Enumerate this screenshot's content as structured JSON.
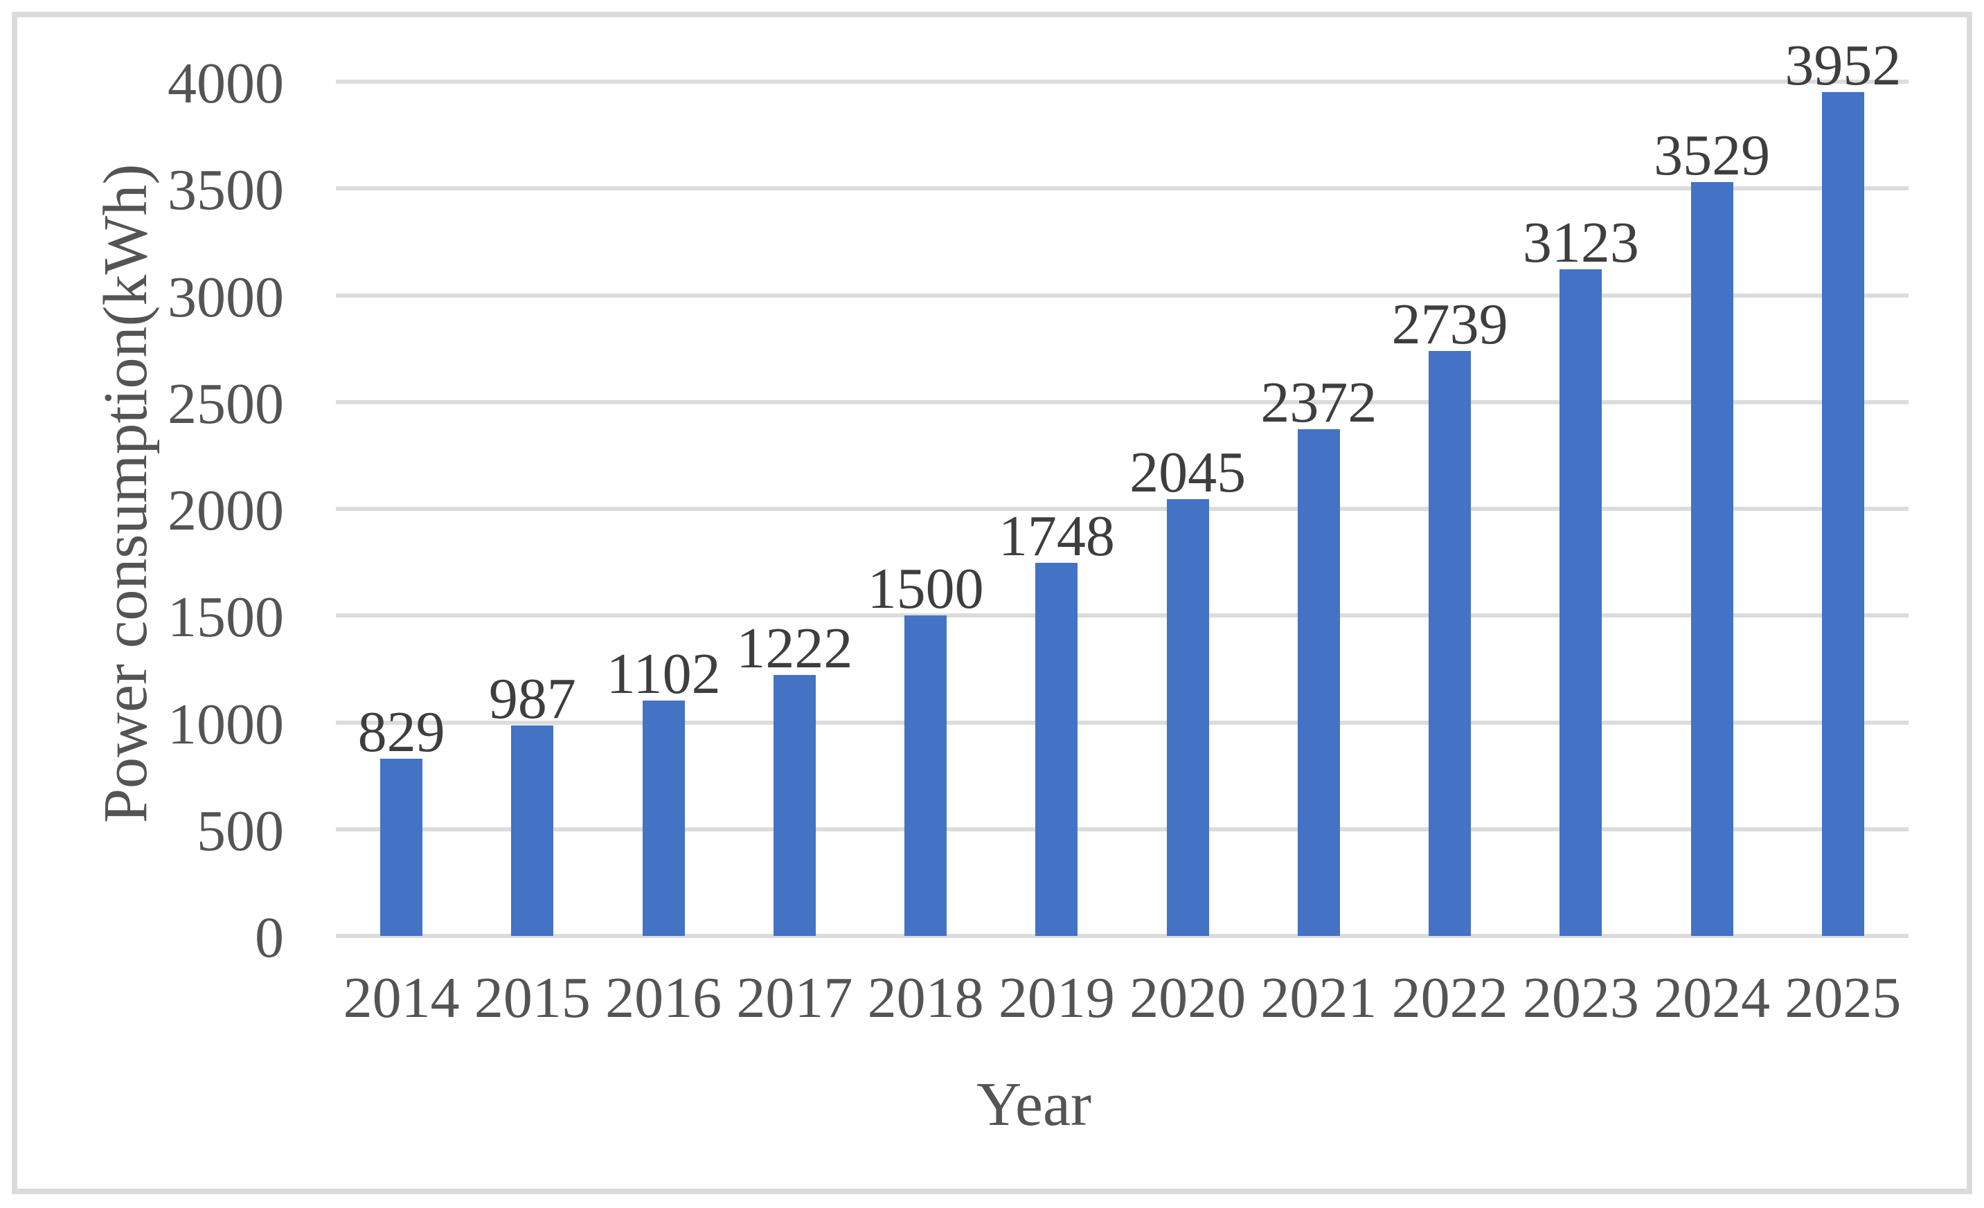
{
  "chart_data": {
    "type": "bar",
    "title": "",
    "categories": [
      "2014",
      "2015",
      "2016",
      "2017",
      "2018",
      "2019",
      "2020",
      "2021",
      "2022",
      "2023",
      "2024",
      "2025"
    ],
    "values": [
      829,
      987,
      1102,
      1222,
      1500,
      1748,
      2045,
      2372,
      2739,
      3123,
      3529,
      3952
    ],
    "xlabel": "Year",
    "ylabel": "Power consumption(kWh)",
    "ylim": [
      0,
      4000
    ],
    "yticks": [
      0,
      500,
      1000,
      1500,
      2000,
      2500,
      3000,
      3500,
      4000
    ],
    "grid": true,
    "legend": "none",
    "data_labels": "outside-end",
    "colors": {
      "bar": "#4472C4",
      "gridline": "#DCDCDC",
      "axis_line": "#DCDCDC",
      "tick_text": "#545454",
      "data_label_text": "#3E3E3E",
      "frame_border": "#DBDBDB",
      "background": "#FFFFFF"
    }
  }
}
